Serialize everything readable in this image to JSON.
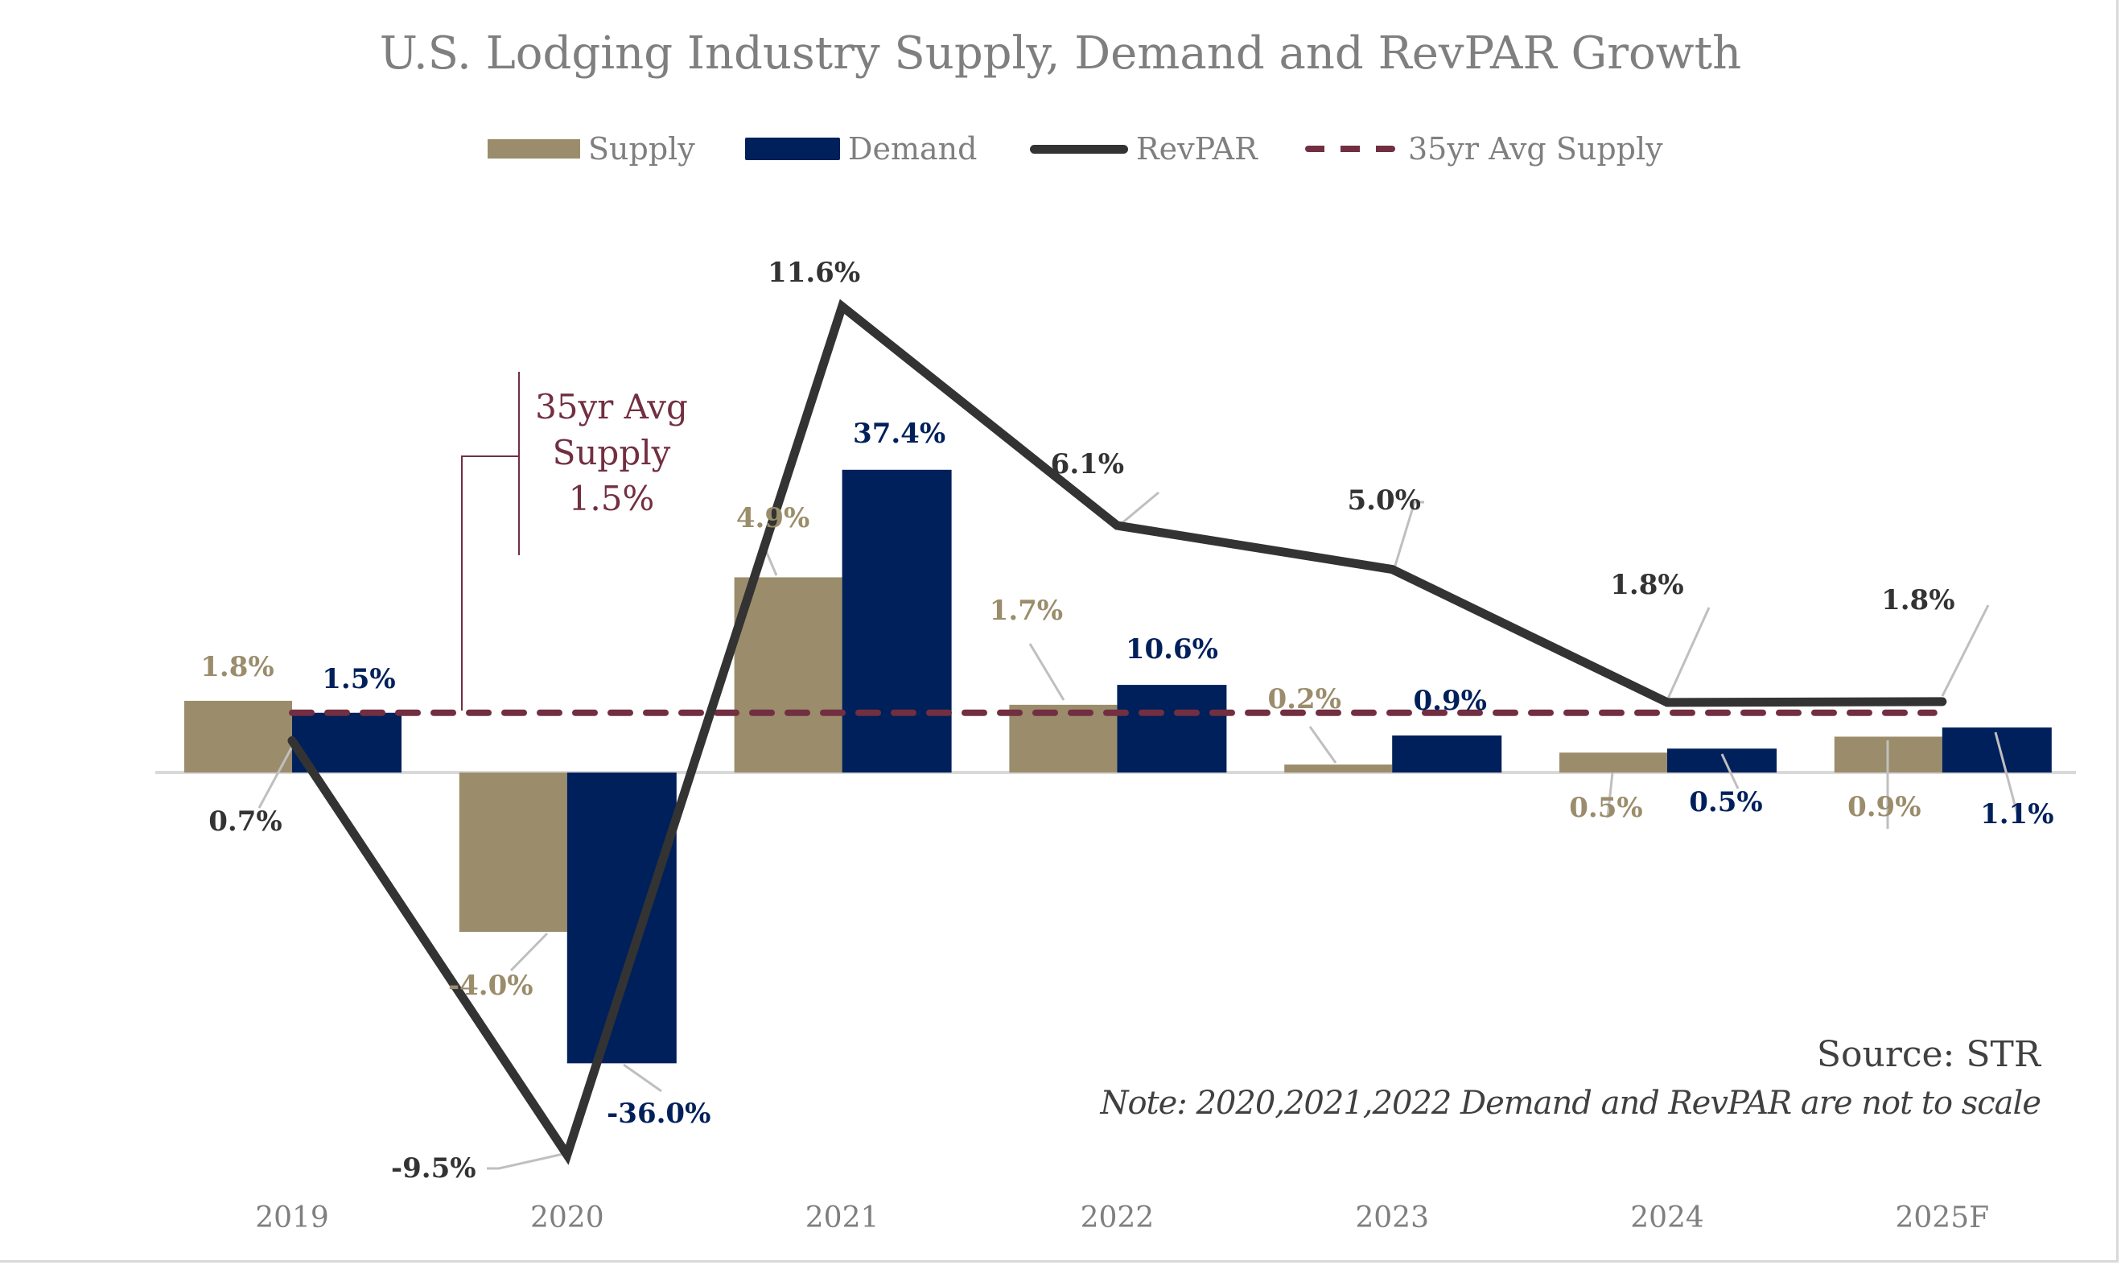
{
  "chart_data": {
    "type": "bar",
    "title": "U.S. Lodging Industry Supply, Demand and RevPAR Growth",
    "categories": [
      "2019",
      "2020",
      "2021",
      "2022",
      "2023",
      "2024",
      "2025F"
    ],
    "xlabel": "",
    "ylabel": "",
    "grid": false,
    "legend_position": "top",
    "legend": [
      "Supply",
      "Demand",
      "RevPAR",
      "35yr Avg Supply"
    ],
    "series": [
      {
        "name": "Supply",
        "kind": "bar",
        "color": "#9b8d6b",
        "values": [
          1.8,
          -4.0,
          4.9,
          1.7,
          0.2,
          0.5,
          0.9
        ],
        "labels": [
          "1.8%",
          "-4.0%",
          "4.9%",
          "1.7%",
          "0.2%",
          "0.5%",
          "0.9%"
        ],
        "plotted_values": [
          1.8,
          -4.0,
          4.9,
          1.7,
          0.2,
          0.5,
          0.9
        ]
      },
      {
        "name": "Demand",
        "kind": "bar",
        "color": "#00205b",
        "values": [
          1.5,
          -36.0,
          37.4,
          10.6,
          0.9,
          0.5,
          1.1
        ],
        "labels": [
          "1.5%",
          "-36.0%",
          "37.4%",
          "10.6%",
          "0.9%",
          "0.5%",
          "1.1%"
        ],
        "plotted_values": [
          1.5,
          -7.3,
          7.6,
          2.2,
          0.93,
          0.6,
          1.13
        ]
      },
      {
        "name": "RevPAR",
        "kind": "line",
        "color": "#333333",
        "values": [
          0.7,
          -9.5,
          11.6,
          6.1,
          5.0,
          1.8,
          1.8
        ],
        "labels": [
          "0.7%",
          "-9.5%",
          "11.6%",
          "6.1%",
          "5.0%",
          "1.8%",
          "1.8%"
        ],
        "plotted_values": [
          0.8,
          -9.6,
          11.7,
          6.2,
          5.1,
          1.76,
          1.78
        ]
      },
      {
        "name": "35yr Avg Supply",
        "kind": "reference-line",
        "color": "#722f41",
        "value": 1.5
      }
    ],
    "ylim": [
      -10.5,
      13.5
    ],
    "annotation": {
      "lines": [
        "35yr Avg",
        "Supply",
        "1.5%"
      ],
      "color": "#722f41"
    },
    "source": "Source: STR",
    "note": "Note: 2020,2021,2022 Demand and RevPAR are not to scale"
  }
}
